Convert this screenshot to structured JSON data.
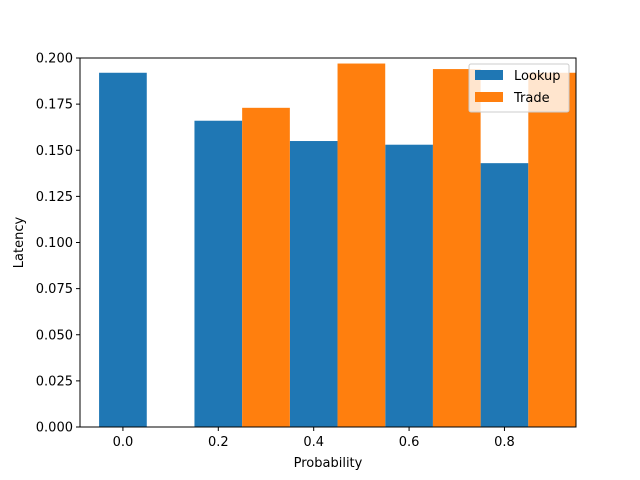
{
  "chart_data": {
    "type": "bar",
    "title": "",
    "xlabel": "Probability",
    "ylabel": "Latency",
    "categories": [
      "0.0",
      "0.2",
      "0.4",
      "0.6",
      "0.8"
    ],
    "x": [
      0.0,
      0.2,
      0.4,
      0.6,
      0.8
    ],
    "series": [
      {
        "name": "Lookup",
        "color": "#1f77b4",
        "values": [
          0.192,
          0.166,
          0.155,
          0.153,
          0.143
        ]
      },
      {
        "name": "Trade",
        "color": "#ff7f0e",
        "values": [
          null,
          0.173,
          0.197,
          0.194,
          0.192
        ]
      }
    ],
    "xlim": [
      -0.09,
      0.95
    ],
    "ylim": [
      0,
      0.2
    ],
    "yticks": [
      "0.000",
      "0.025",
      "0.050",
      "0.075",
      "0.100",
      "0.125",
      "0.150",
      "0.175",
      "0.200"
    ],
    "xticks": [
      "0.0",
      "0.2",
      "0.4",
      "0.6",
      "0.8"
    ],
    "grid": false,
    "legend": "top-right"
  }
}
